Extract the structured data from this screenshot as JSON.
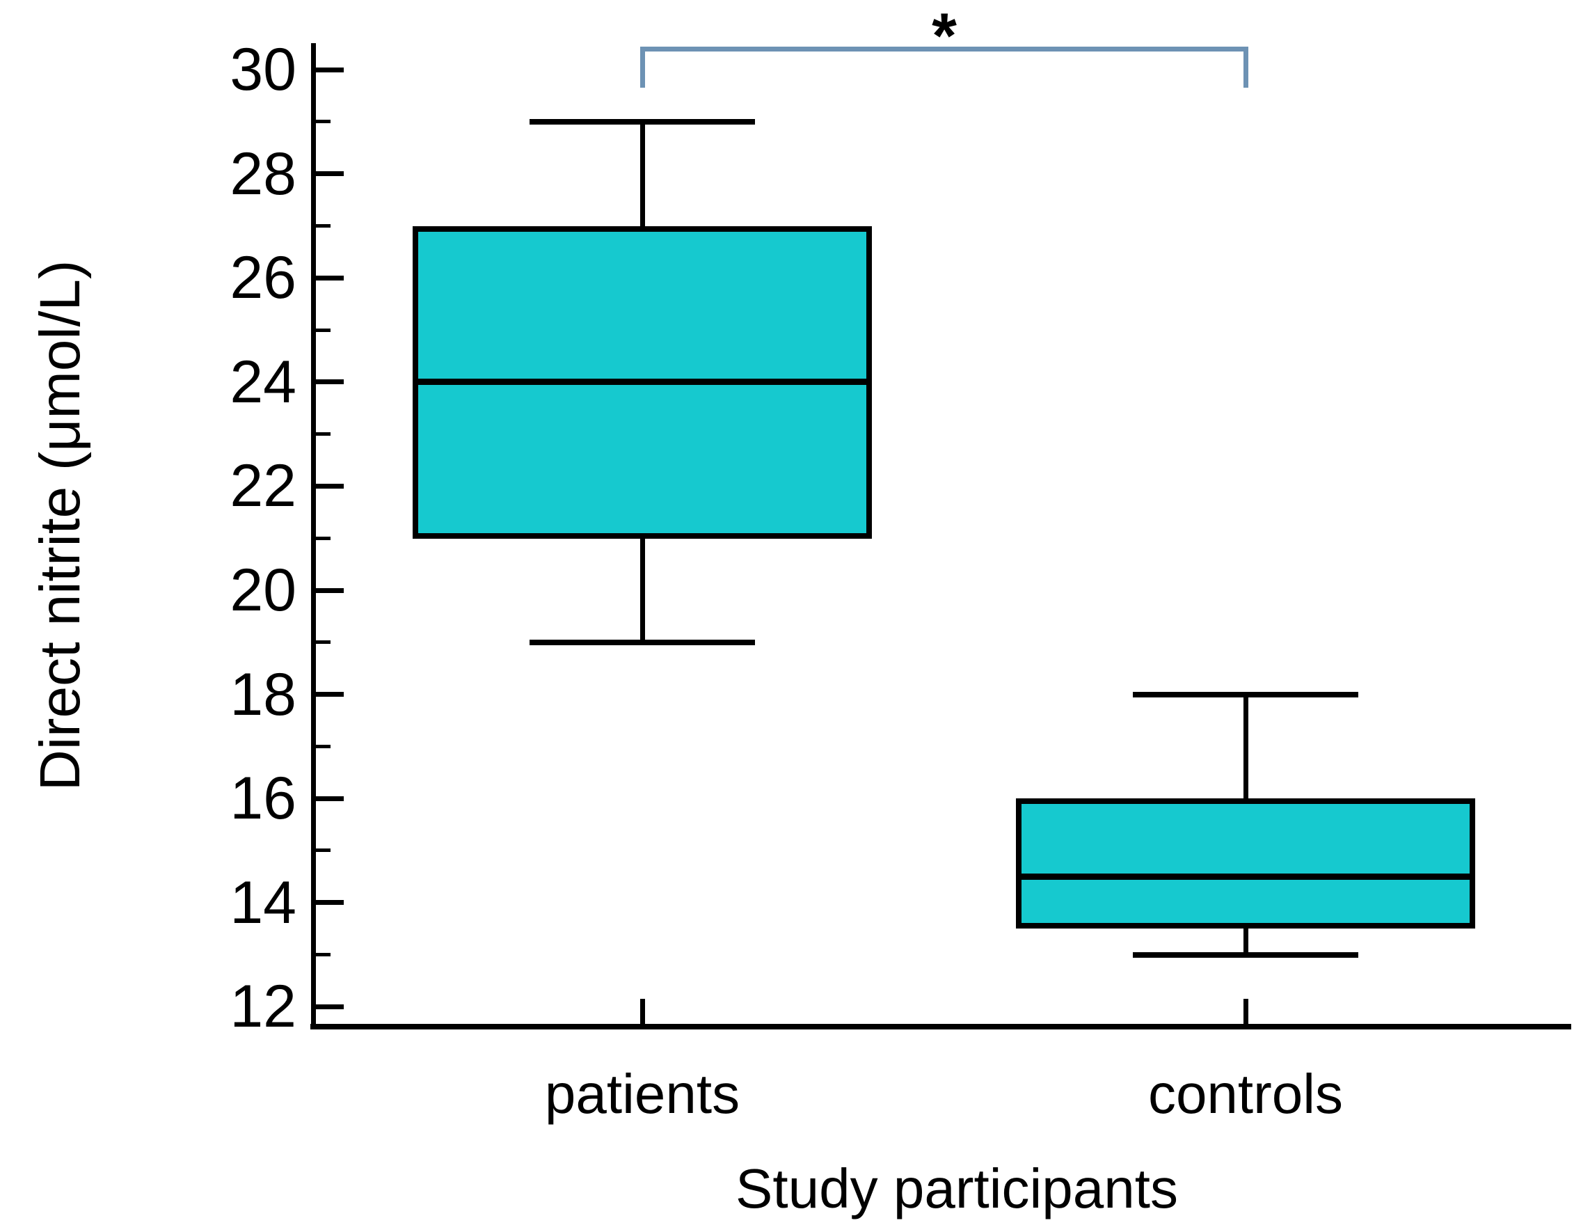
{
  "chart_data": {
    "type": "box",
    "title": "",
    "xlabel": "Study participants",
    "ylabel": "Direct nitrite (μmol/L)",
    "categories": [
      "patients",
      "controls"
    ],
    "series": [
      {
        "name": "patients",
        "min": 19,
        "q1": 21,
        "median": 24,
        "q3": 27,
        "max": 29
      },
      {
        "name": "controls",
        "min": 13,
        "q1": 13.5,
        "median": 14.5,
        "q3": 16,
        "max": 18
      }
    ],
    "ylim": [
      11.63,
      30.51
    ],
    "yticks_major": [
      12,
      14,
      16,
      18,
      20,
      22,
      24,
      26,
      28,
      30
    ],
    "yticks_minor": [
      13,
      15,
      17,
      19,
      21,
      23,
      25,
      27,
      29
    ],
    "grid": "off",
    "legend": "none",
    "box_fill_color": "#16C9CF",
    "box_border_color": "#000000",
    "axis_color": "#000000",
    "significance": {
      "label": "*",
      "from": "patients",
      "to": "controls",
      "color": "#6D92B4"
    }
  }
}
